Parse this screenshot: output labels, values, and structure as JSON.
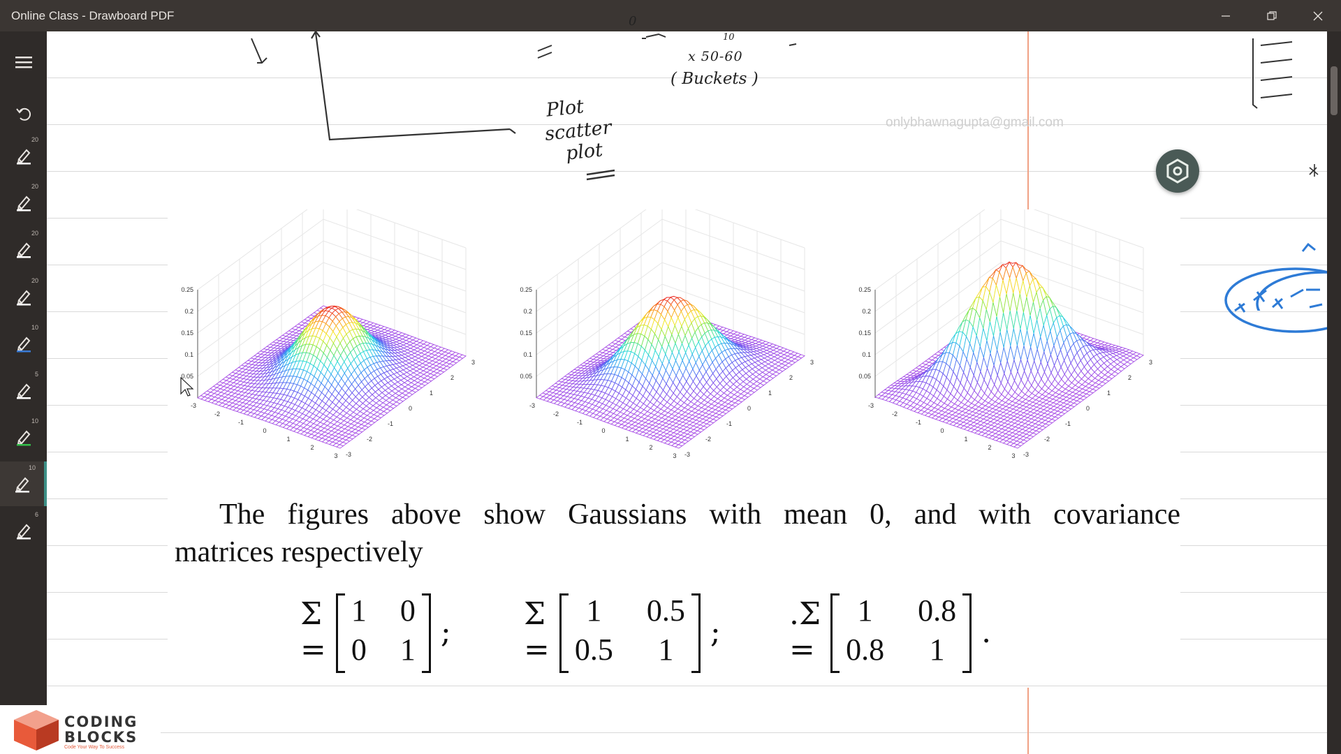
{
  "window": {
    "title": "Online Class - Drawboard PDF",
    "controls": {
      "minimize": "minimize",
      "restore": "restore",
      "close": "close"
    }
  },
  "toolbar": {
    "tools": [
      {
        "icon": "menu-icon"
      },
      {
        "icon": "undo-icon"
      },
      {
        "icon": "pen-icon",
        "size": "20",
        "color": "#ffffff"
      },
      {
        "icon": "pen-icon",
        "size": "20",
        "color": "#ffffff"
      },
      {
        "icon": "pen-icon",
        "size": "20",
        "color": "#ffffff"
      },
      {
        "icon": "pen-icon",
        "size": "20",
        "color": "#ffffff"
      },
      {
        "icon": "pen-icon",
        "size": "10",
        "color": "#3a7bd5"
      },
      {
        "icon": "pen-icon",
        "size": "5",
        "color": "#ffffff"
      },
      {
        "icon": "pen-icon",
        "size": "10",
        "color": "#33c04a"
      },
      {
        "icon": "pen-icon",
        "size": "10",
        "color": "#ffffff",
        "active": true
      },
      {
        "icon": "pen-icon",
        "size": "6",
        "color": "#ffffff"
      }
    ]
  },
  "handwriting": {
    "plot_note": "Plot",
    "scatter_note": "scatter",
    "plot_note2": "plot",
    "buckets_note": "( Buckets )",
    "range_note": "x 50-60",
    "zero_note": "0",
    "ten_note": "10"
  },
  "watermark": "onlybhawnagupta@gmail.com",
  "pdf": {
    "caption_line1": "The figures above show Gaussians with mean 0, and with covariance",
    "caption_line2": "matrices respectively",
    "matrices": [
      {
        "prefix": "Σ =",
        "cells": [
          "1",
          "0",
          "0",
          "1"
        ],
        "suffix": ";"
      },
      {
        "prefix": "Σ =",
        "cells": [
          "1",
          "0.5",
          "0.5",
          "1"
        ],
        "suffix": ";"
      },
      {
        "prefix": ".Σ =",
        "cells": [
          "1",
          "0.8",
          "0.8",
          "1"
        ],
        "suffix": "."
      }
    ]
  },
  "chart_data": [
    {
      "type": "surface",
      "title": "",
      "covariance": [
        [
          1,
          0
        ],
        [
          0,
          1
        ]
      ],
      "mean": [
        0,
        0
      ],
      "zticks": [
        "0.25",
        "0.2",
        "0.15",
        "0.1",
        "0.05"
      ],
      "xticks": [
        "-3",
        "-2",
        "-1",
        "0",
        "1",
        "2",
        "3"
      ],
      "yticks": [
        "-3",
        "-2",
        "-1",
        "0",
        "1",
        "2",
        "3"
      ],
      "zlim": [
        0,
        0.25
      ]
    },
    {
      "type": "surface",
      "title": "",
      "covariance": [
        [
          1,
          0.5
        ],
        [
          0.5,
          1
        ]
      ],
      "mean": [
        0,
        0
      ],
      "zticks": [
        "0.25",
        "0.2",
        "0.15",
        "0.1",
        "0.05"
      ],
      "xticks": [
        "-3",
        "-2",
        "-1",
        "0",
        "1",
        "2",
        "3"
      ],
      "yticks": [
        "-3",
        "-2",
        "-1",
        "0",
        "1",
        "2",
        "3"
      ],
      "zlim": [
        0,
        0.25
      ]
    },
    {
      "type": "surface",
      "title": "",
      "covariance": [
        [
          1,
          0.8
        ],
        [
          0.8,
          1
        ]
      ],
      "mean": [
        0,
        0
      ],
      "zticks": [
        "0.25",
        "0.2",
        "0.15",
        "0.1",
        "0.05"
      ],
      "xticks": [
        "-3",
        "-2",
        "-1",
        "0",
        "1",
        "2",
        "3"
      ],
      "yticks": [
        "-3",
        "-2",
        "-1",
        "0",
        "1",
        "2",
        "3"
      ],
      "zlim": [
        0,
        0.25
      ]
    }
  ],
  "logo": {
    "line1": "CODING",
    "line2": "BLOCKS",
    "tagline": "Code Your Way To Success"
  }
}
